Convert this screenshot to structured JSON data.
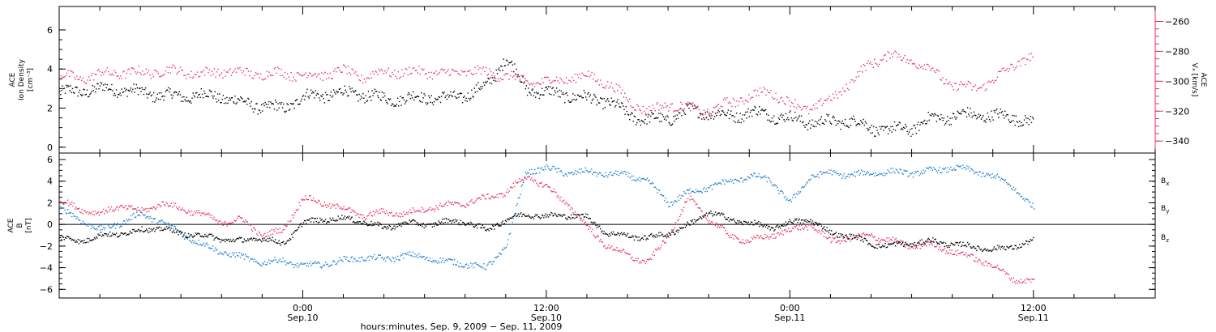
{
  "colors": {
    "black": "#000000",
    "red": "#e8325c",
    "blue": "#1f7fd0"
  },
  "chart_data": [
    {
      "type": "scatter",
      "panel": "top",
      "ylabel_lines": [
        "ACE",
        "Ion Density",
        "[cm⁻³]"
      ],
      "ylim": [
        -0.3,
        7.2
      ],
      "yticks": [
        0,
        2,
        4,
        6
      ],
      "ylabel_right_lines": [
        "ACE",
        "Vₓ [km/s]"
      ],
      "ylim_right": [
        -348,
        -250
      ],
      "yticks_right": [
        -340,
        -320,
        -300,
        -280,
        -260
      ],
      "xlim_hours": [
        0,
        54
      ],
      "series": [
        {
          "name": "",
          "axis": "left",
          "color": "black",
          "x_hours": [
            0,
            1,
            2,
            3,
            4,
            5,
            6,
            7,
            8,
            9,
            10,
            11,
            12,
            13,
            14,
            15,
            16,
            17,
            18,
            19,
            20,
            21,
            22,
            23,
            24,
            25,
            26,
            27,
            28,
            29,
            30,
            31,
            32,
            33,
            34,
            35,
            36,
            37,
            38,
            39,
            40,
            41,
            42,
            43,
            44,
            45,
            46,
            47,
            48
          ],
          "values": [
            2.8,
            2.9,
            3.0,
            3.0,
            2.8,
            2.7,
            2.6,
            2.7,
            2.6,
            2.3,
            2.1,
            2.0,
            2.6,
            2.7,
            2.8,
            2.7,
            2.5,
            2.5,
            2.6,
            2.5,
            2.7,
            3.1,
            4.6,
            3.0,
            2.8,
            2.7,
            2.5,
            2.4,
            1.7,
            1.4,
            1.5,
            1.9,
            1.8,
            1.6,
            1.8,
            1.7,
            1.5,
            1.3,
            1.3,
            1.4,
            1.0,
            0.9,
            1.0,
            1.5,
            1.6,
            1.7,
            1.6,
            1.6,
            1.2
          ]
        },
        {
          "name": "",
          "axis": "right",
          "color": "red",
          "x_hours": [
            0,
            1,
            2,
            3,
            4,
            5,
            6,
            7,
            8,
            9,
            10,
            11,
            12,
            13,
            14,
            15,
            16,
            17,
            18,
            19,
            20,
            21,
            22,
            23,
            24,
            25,
            26,
            27,
            28,
            29,
            30,
            31,
            32,
            33,
            34,
            35,
            36,
            37,
            38,
            39,
            40,
            41,
            42,
            43,
            44,
            45,
            46,
            47,
            48
          ],
          "values": [
            -296,
            -298,
            -295,
            -294,
            -294,
            -293,
            -293,
            -295,
            -293,
            -294,
            -295,
            -294,
            -296,
            -295,
            -293,
            -297,
            -293,
            -294,
            -293,
            -295,
            -293,
            -294,
            -296,
            -300,
            -300,
            -298,
            -296,
            -301,
            -312,
            -320,
            -315,
            -318,
            -320,
            -314,
            -310,
            -306,
            -315,
            -318,
            -312,
            -300,
            -287,
            -282,
            -286,
            -292,
            -303,
            -304,
            -300,
            -288,
            -284
          ]
        }
      ]
    },
    {
      "type": "scatter",
      "panel": "bottom",
      "ylabel_lines": [
        "ACE",
        "B",
        "[nT]"
      ],
      "ylim": [
        -6.8,
        6.6
      ],
      "yticks": [
        -6,
        -4,
        -2,
        0,
        2,
        4,
        6
      ],
      "xlim_hours": [
        0,
        54
      ],
      "xticks": [
        {
          "hour": 12,
          "line1": "0:00",
          "line2": "Sep.10"
        },
        {
          "hour": 24,
          "line1": "12:00",
          "line2": "Sep.10"
        },
        {
          "hour": 36,
          "line1": "0:00",
          "line2": "Sep.11"
        },
        {
          "hour": 48,
          "line1": "12:00",
          "line2": "Sep.11"
        }
      ],
      "xlabel": "hours:minutes, Sep.  9, 2009 − Sep. 11, 2009",
      "series": [
        {
          "name": "Bx",
          "color": "black",
          "x_hours": [
            0,
            1,
            2,
            3,
            4,
            5,
            6,
            7,
            8,
            9,
            10,
            11,
            12,
            13,
            14,
            15,
            16,
            17,
            18,
            19,
            20,
            21,
            22,
            23,
            24,
            25,
            26,
            27,
            28,
            29,
            30,
            31,
            32,
            33,
            34,
            35,
            36,
            37,
            38,
            39,
            40,
            41,
            42,
            43,
            44,
            45,
            46,
            47,
            48
          ],
          "values": [
            -1.2,
            -1.5,
            -1.0,
            -0.8,
            -0.5,
            -0.3,
            -0.8,
            -1.0,
            -1.3,
            -1.5,
            -1.2,
            -1.8,
            0.2,
            0.5,
            0.6,
            0.3,
            -0.3,
            0.2,
            0.0,
            0.3,
            0.3,
            -0.5,
            0.5,
            1.0,
            0.8,
            0.9,
            0.7,
            -0.8,
            -1.0,
            -1.2,
            -0.8,
            0.0,
            1.2,
            0.5,
            0.2,
            -0.3,
            0.2,
            0.5,
            -0.8,
            -1.0,
            -1.8,
            -1.9,
            -1.7,
            -1.5,
            -1.8,
            -2.0,
            -2.3,
            -2.0,
            -1.5
          ]
        },
        {
          "name": "By",
          "color": "blue",
          "x_hours": [
            0,
            1,
            2,
            3,
            4,
            5,
            6,
            7,
            8,
            9,
            10,
            11,
            12,
            13,
            14,
            15,
            16,
            17,
            18,
            19,
            20,
            21,
            22,
            23,
            24,
            25,
            26,
            27,
            28,
            29,
            30,
            31,
            32,
            33,
            34,
            35,
            36,
            37,
            38,
            39,
            40,
            41,
            42,
            43,
            44,
            45,
            46,
            47,
            48
          ],
          "values": [
            1.5,
            0.5,
            -0.5,
            0.2,
            1.0,
            0.3,
            -0.8,
            -1.8,
            -2.5,
            -3.0,
            -3.5,
            -3.3,
            -3.8,
            -3.6,
            -3.3,
            -3.0,
            -3.2,
            -2.8,
            -3.0,
            -3.4,
            -3.6,
            -4.0,
            -2.0,
            5.0,
            5.2,
            4.8,
            4.9,
            4.7,
            4.6,
            4.0,
            2.0,
            3.0,
            3.5,
            4.0,
            4.5,
            4.2,
            2.0,
            4.5,
            4.8,
            4.6,
            4.8,
            4.9,
            4.8,
            5.0,
            5.3,
            5.0,
            4.5,
            3.5,
            1.5
          ]
        },
        {
          "name": "Bz",
          "color": "red",
          "x_hours": [
            0,
            1,
            2,
            3,
            4,
            5,
            6,
            7,
            8,
            9,
            10,
            11,
            12,
            13,
            14,
            15,
            16,
            17,
            18,
            19,
            20,
            21,
            22,
            23,
            24,
            25,
            26,
            27,
            28,
            29,
            30,
            31,
            32,
            33,
            34,
            35,
            36,
            37,
            38,
            39,
            40,
            41,
            42,
            43,
            44,
            45,
            46,
            47,
            48
          ],
          "values": [
            2.2,
            1.5,
            1.0,
            1.8,
            1.2,
            2.0,
            1.5,
            1.0,
            0.2,
            0.5,
            -1.0,
            -0.5,
            2.5,
            2.0,
            1.5,
            0.8,
            1.2,
            1.0,
            1.5,
            1.8,
            2.0,
            2.5,
            3.0,
            4.5,
            3.5,
            2.0,
            -0.2,
            -2.0,
            -2.8,
            -3.5,
            -1.0,
            2.5,
            0.5,
            -1.0,
            -1.5,
            -1.0,
            -0.5,
            0.0,
            -1.5,
            -1.2,
            -1.0,
            -1.5,
            -2.0,
            -1.8,
            -2.5,
            -3.0,
            -3.8,
            -5.0,
            -5.3
          ]
        }
      ]
    }
  ],
  "legend": [
    {
      "base": "B",
      "sub": "x",
      "color": "black"
    },
    {
      "base": "B",
      "sub": "y",
      "color": "blue"
    },
    {
      "base": "B",
      "sub": "z",
      "color": "red"
    }
  ]
}
